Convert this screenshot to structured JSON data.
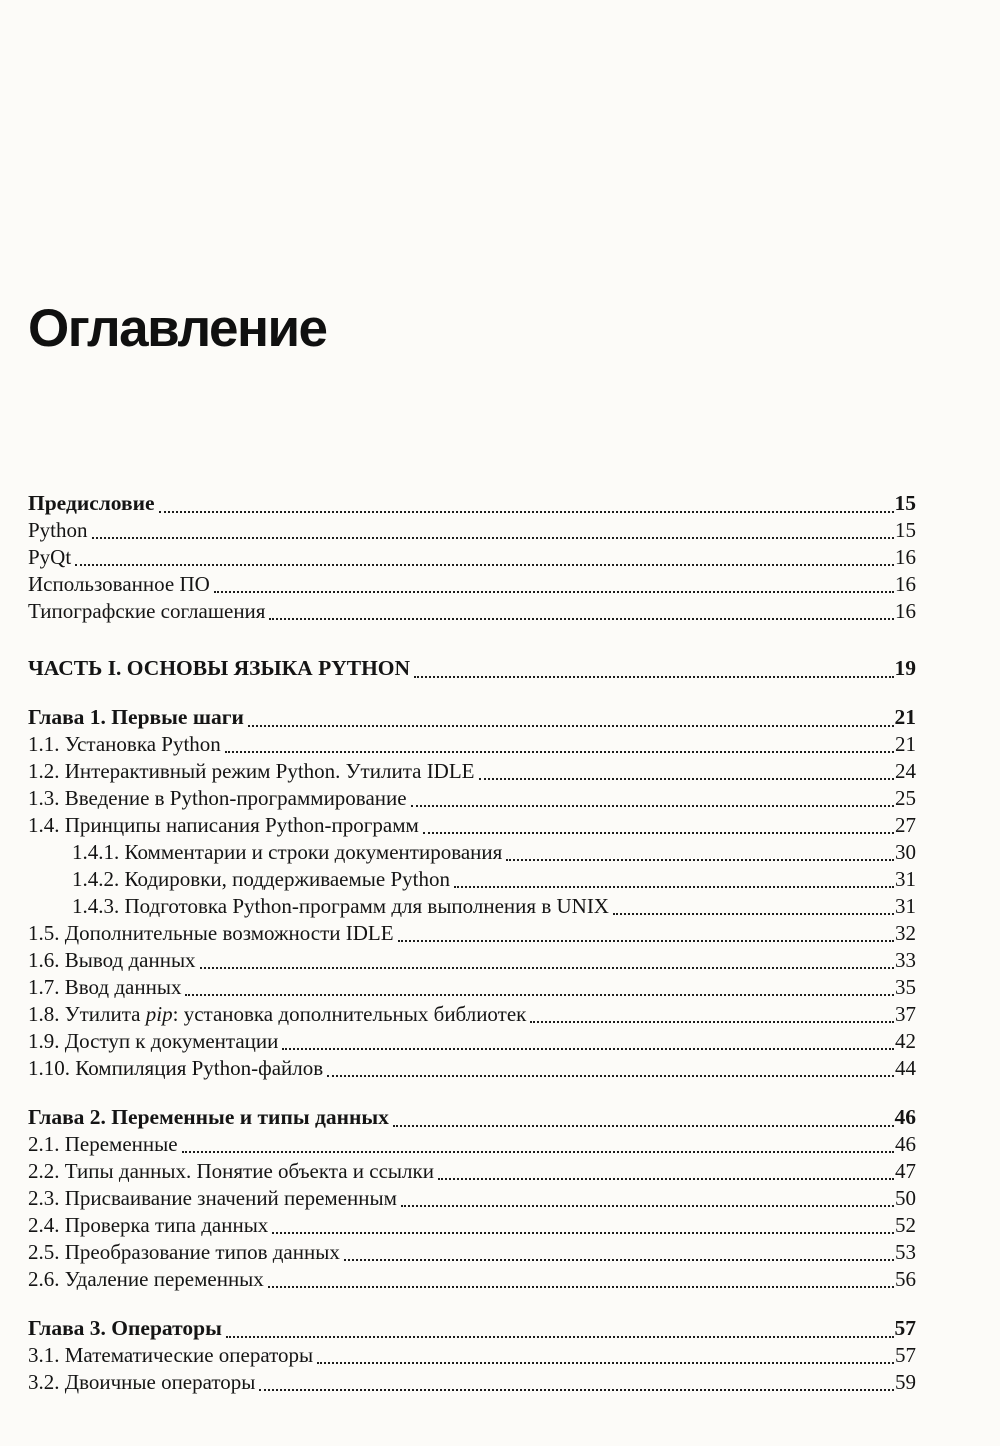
{
  "page": {
    "title": "Оглавление"
  },
  "colors": {
    "paper": "#fcfbf8",
    "ink": "#141414"
  },
  "toc": {
    "entries": [
      {
        "label": "Предисловие",
        "page": "15",
        "bold": true
      },
      {
        "label": "Python",
        "page": "15"
      },
      {
        "label": "PyQt",
        "page": "16"
      },
      {
        "label": "Использованное ПО",
        "page": "16"
      },
      {
        "label": "Типографские соглашения",
        "page": "16"
      },
      {
        "label": "ЧАСТЬ I. ОСНОВЫ ЯЗЫКА PYTHON",
        "page": "19",
        "bold": true,
        "gap": "part"
      },
      {
        "label": "Глава 1. Первые шаги",
        "page": "21",
        "bold": true,
        "gap": "chapter"
      },
      {
        "label": "1.1. Установка Python",
        "page": "21"
      },
      {
        "label": "1.2. Интерактивный режим Python. Утилита IDLE",
        "page": "24"
      },
      {
        "label": "1.3. Введение в Python-программирование",
        "page": "25"
      },
      {
        "label": "1.4. Принципы написания Python-программ",
        "page": "27"
      },
      {
        "label": "1.4.1. Комментарии и строки документирования",
        "page": "30",
        "indent": 1
      },
      {
        "label": "1.4.2. Кодировки, поддерживаемые Python",
        "page": "31",
        "indent": 1
      },
      {
        "label": "1.4.3. Подготовка Python-программ для выполнения в UNIX",
        "page": "31",
        "indent": 1
      },
      {
        "label": "1.5. Дополнительные возможности IDLE",
        "page": "32"
      },
      {
        "label": "1.6. Вывод данных",
        "page": "33"
      },
      {
        "label": "1.7. Ввод данных",
        "page": "35"
      },
      {
        "parts": [
          {
            "text": "1.8. Утилита "
          },
          {
            "text": "pip",
            "italic": true
          },
          {
            "text": ": установка дополнительных библиотек"
          }
        ],
        "page": "37"
      },
      {
        "label": "1.9. Доступ к документации",
        "page": "42"
      },
      {
        "label": "1.10. Компиляция Python-файлов",
        "page": "44"
      },
      {
        "label": "Глава 2. Переменные и типы данных",
        "page": "46",
        "bold": true,
        "gap": "chapter"
      },
      {
        "label": "2.1. Переменные",
        "page": "46"
      },
      {
        "label": "2.2. Типы данных. Понятие объекта и ссылки",
        "page": "47"
      },
      {
        "label": "2.3. Присваивание значений переменным",
        "page": "50"
      },
      {
        "label": "2.4. Проверка типа данных",
        "page": "52"
      },
      {
        "label": "2.5. Преобразование типов данных",
        "page": "53"
      },
      {
        "label": "2.6. Удаление переменных",
        "page": "56"
      },
      {
        "label": "Глава 3. Операторы",
        "page": "57",
        "bold": true,
        "gap": "chapter"
      },
      {
        "label": "3.1. Математические операторы",
        "page": "57"
      },
      {
        "label": "3.2. Двоичные операторы",
        "page": "59"
      }
    ]
  }
}
